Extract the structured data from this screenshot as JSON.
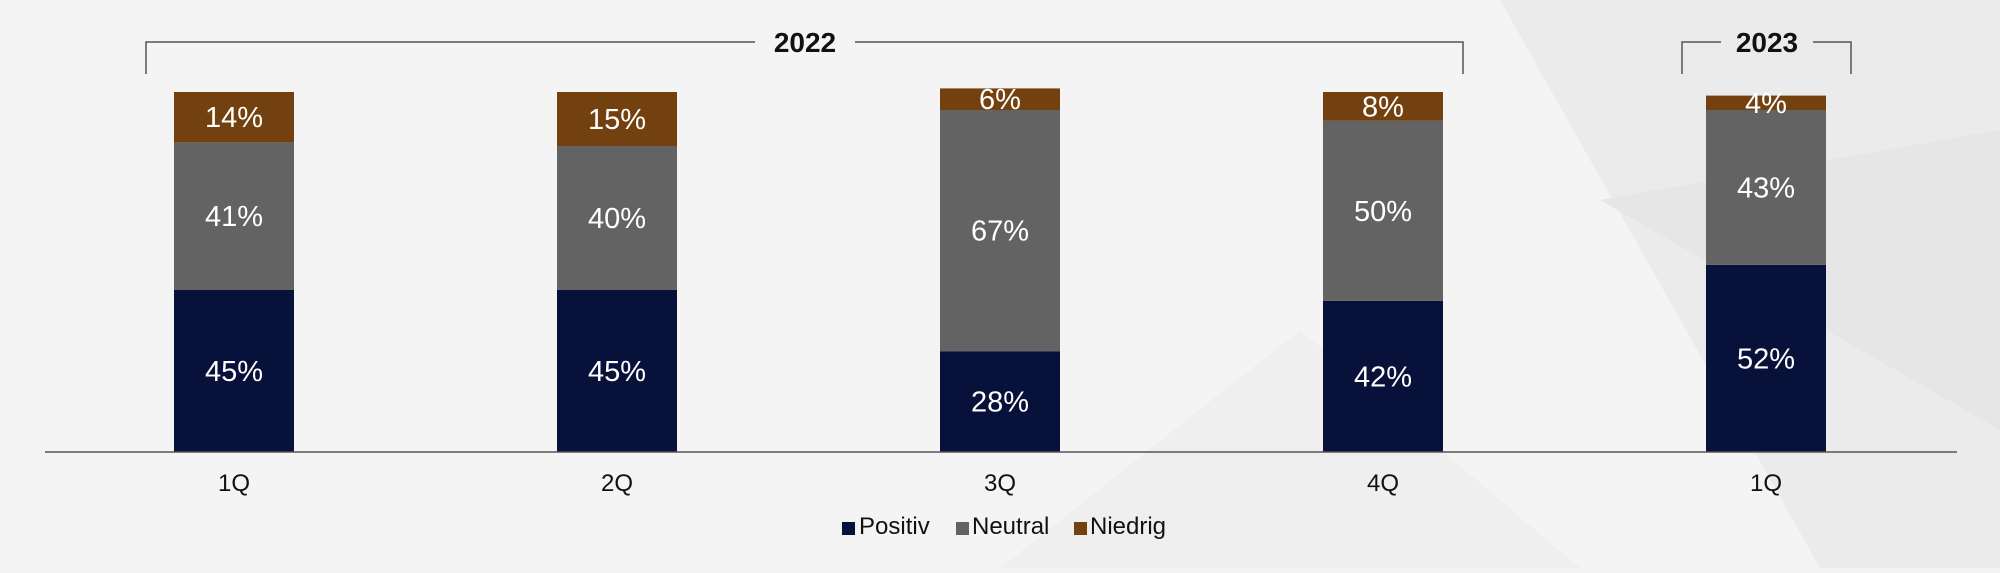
{
  "chart_data": {
    "type": "bar",
    "stacked": true,
    "categories": [
      "1Q",
      "2Q",
      "3Q",
      "4Q",
      "1Q"
    ],
    "groups": [
      {
        "label": "2022",
        "categories": [
          0,
          1,
          2,
          3
        ]
      },
      {
        "label": "2023",
        "categories": [
          4
        ]
      }
    ],
    "series": [
      {
        "name": "Positiv",
        "values": [
          45,
          45,
          28,
          42,
          52
        ],
        "labels": [
          "45%",
          "45%",
          "28%",
          "42%",
          "52%"
        ],
        "color": "#07113a"
      },
      {
        "name": "Neutral",
        "values": [
          41,
          40,
          67,
          50,
          43
        ],
        "labels": [
          "41%",
          "40%",
          "67%",
          "50%",
          "43%"
        ],
        "color": "#636363"
      },
      {
        "name": "Niedrig",
        "values": [
          14,
          15,
          6,
          8,
          4
        ],
        "labels": [
          "14%",
          "15%",
          "6%",
          "8%",
          "4%"
        ],
        "color": "#73400f"
      }
    ],
    "ylim": [
      0,
      100
    ],
    "value_unit": "%",
    "grid": false,
    "legend": "bottom-center",
    "title": "",
    "xlabel": "",
    "ylabel": ""
  }
}
